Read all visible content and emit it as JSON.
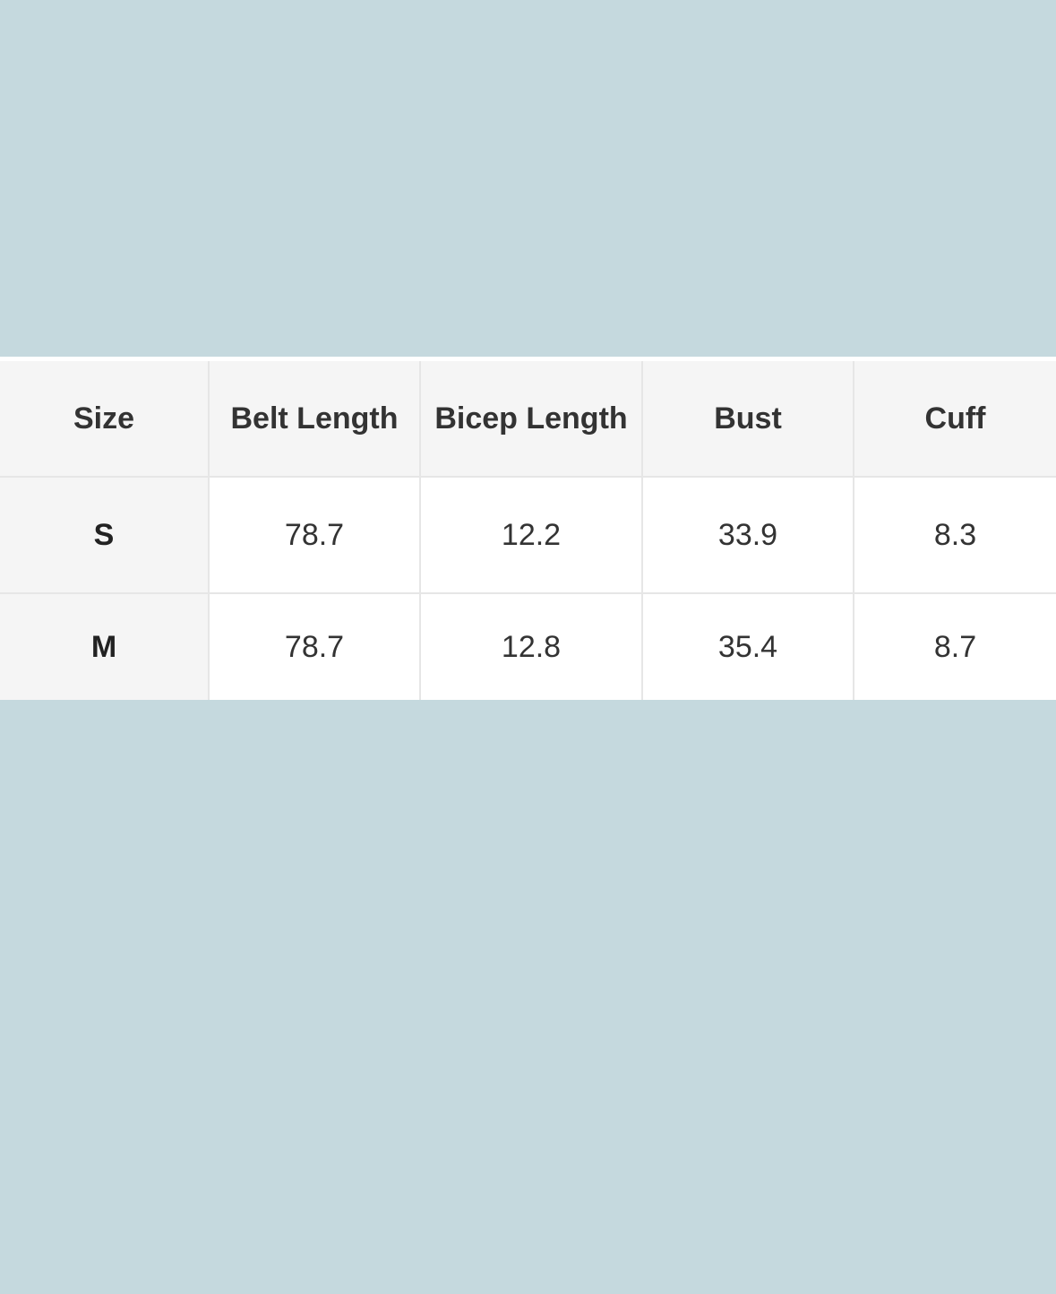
{
  "colors": {
    "background": "#c5d9de",
    "header_bg": "#f5f5f5",
    "cell_bg": "#ffffff",
    "border": "#e6e6e6"
  },
  "table": {
    "headers": [
      "Size",
      "Belt Length",
      "Bicep Length",
      "Bust",
      "Cuff"
    ],
    "rows": [
      [
        "S",
        "78.7",
        "12.2",
        "33.9",
        "8.3"
      ],
      [
        "M",
        "78.7",
        "12.8",
        "35.4",
        "8.7"
      ]
    ]
  }
}
